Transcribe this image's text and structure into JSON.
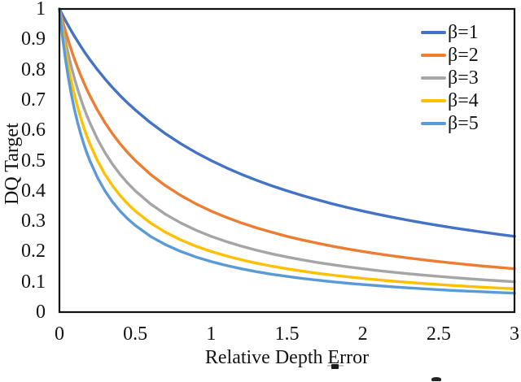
{
  "figure": {
    "background": "#ffffff",
    "axis_color": "#101010",
    "text_color": "#131313"
  },
  "chart_data": {
    "type": "line",
    "title": "",
    "xlabel": "Relative Depth Error",
    "ylabel": "DQ Target",
    "xlim": [
      0,
      3
    ],
    "ylim": [
      0,
      1
    ],
    "grid": false,
    "legend_position": "top-right-inside",
    "x_ticks": [
      "0",
      "0.5",
      "1",
      "1.5",
      "2",
      "2.5",
      "3"
    ],
    "y_ticks": [
      "1",
      "0.9",
      "0.8",
      "0.7",
      "0.6",
      "0.5",
      "0.4",
      "0.3",
      "0.2",
      "0.1",
      "0"
    ],
    "x": [
      0,
      0.02,
      0.04,
      0.06,
      0.08,
      0.1,
      0.12,
      0.14,
      0.16,
      0.18,
      0.2,
      0.25,
      0.3,
      0.35,
      0.4,
      0.45,
      0.5,
      0.6,
      0.7,
      0.8,
      0.9,
      1,
      1.1,
      1.2,
      1.3,
      1.4,
      1.5,
      1.6,
      1.7,
      1.8,
      1.9,
      2,
      2.1,
      2.2,
      2.3,
      2.4,
      2.5,
      2.6,
      2.7,
      2.8,
      2.9,
      3
    ],
    "series": [
      {
        "name": "β=1",
        "color": "#4472C4",
        "values": [
          1,
          0.9804,
          0.9615,
          0.9434,
          0.9259,
          0.9091,
          0.8929,
          0.8772,
          0.8621,
          0.8475,
          0.8333,
          0.8,
          0.7692,
          0.7407,
          0.7143,
          0.6897,
          0.6667,
          0.625,
          0.5882,
          0.5556,
          0.5263,
          0.5,
          0.4762,
          0.4545,
          0.4348,
          0.4167,
          0.4,
          0.3846,
          0.3704,
          0.3571,
          0.3448,
          0.3333,
          0.3226,
          0.3125,
          0.303,
          0.2941,
          0.2857,
          0.2778,
          0.2703,
          0.2632,
          0.2564,
          0.25
        ]
      },
      {
        "name": "β=2",
        "color": "#ED7D31",
        "values": [
          1,
          0.9615,
          0.9259,
          0.8929,
          0.8621,
          0.8333,
          0.8065,
          0.7813,
          0.7576,
          0.7353,
          0.7143,
          0.6667,
          0.625,
          0.5882,
          0.5556,
          0.5263,
          0.5,
          0.4545,
          0.4167,
          0.3846,
          0.3571,
          0.3333,
          0.3125,
          0.2941,
          0.2778,
          0.2632,
          0.25,
          0.2381,
          0.2273,
          0.2174,
          0.2083,
          0.2,
          0.1923,
          0.1852,
          0.1786,
          0.1724,
          0.1667,
          0.1613,
          0.1563,
          0.1515,
          0.1471,
          0.1429
        ]
      },
      {
        "name": "β=3",
        "color": "#A5A5A5",
        "values": [
          1,
          0.9434,
          0.8929,
          0.8475,
          0.8065,
          0.7692,
          0.7353,
          0.7042,
          0.6757,
          0.6494,
          0.625,
          0.5714,
          0.5263,
          0.4878,
          0.4545,
          0.4255,
          0.4,
          0.3571,
          0.3226,
          0.2941,
          0.2703,
          0.25,
          0.2326,
          0.2174,
          0.2041,
          0.1923,
          0.1818,
          0.1724,
          0.1639,
          0.1563,
          0.1493,
          0.1429,
          0.137,
          0.1316,
          0.1266,
          0.122,
          0.1176,
          0.1136,
          0.1099,
          0.1064,
          0.1031,
          0.1
        ]
      },
      {
        "name": "β=4",
        "color": "#FFC000",
        "values": [
          1,
          0.9259,
          0.8621,
          0.8065,
          0.7576,
          0.7143,
          0.6757,
          0.641,
          0.6098,
          0.5814,
          0.5556,
          0.5,
          0.4545,
          0.4167,
          0.3846,
          0.3571,
          0.3333,
          0.2941,
          0.2632,
          0.2381,
          0.2174,
          0.2,
          0.1852,
          0.1724,
          0.1613,
          0.1515,
          0.1429,
          0.1351,
          0.1282,
          0.122,
          0.1163,
          0.1111,
          0.1064,
          0.102,
          0.098,
          0.0943,
          0.0909,
          0.0877,
          0.0847,
          0.082,
          0.0794,
          0.0769
        ]
      },
      {
        "name": "β=5",
        "color": "#5B9BD5",
        "values": [
          1,
          0.9091,
          0.8333,
          0.7692,
          0.7143,
          0.6667,
          0.625,
          0.5882,
          0.5556,
          0.5263,
          0.5,
          0.4444,
          0.4,
          0.3636,
          0.3333,
          0.3077,
          0.2857,
          0.25,
          0.2222,
          0.2,
          0.1818,
          0.1667,
          0.1538,
          0.1429,
          0.1333,
          0.125,
          0.1176,
          0.1111,
          0.1053,
          0.1,
          0.0952,
          0.0909,
          0.087,
          0.0833,
          0.08,
          0.0769,
          0.0741,
          0.0714,
          0.069,
          0.0667,
          0.0645,
          0.0625
        ]
      }
    ]
  }
}
